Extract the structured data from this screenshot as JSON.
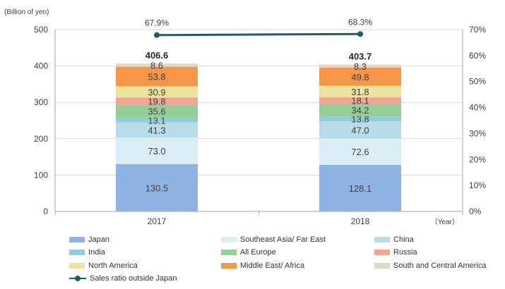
{
  "chart_data": {
    "type": "bar",
    "stacked": true,
    "categories": [
      "2017",
      "2018"
    ],
    "y_left_label": "(Billion of yen)",
    "x_unit_label": "（Year）",
    "ylim": [
      0,
      500
    ],
    "y_ticks": [
      "0",
      "100",
      "200",
      "300",
      "400",
      "500"
    ],
    "y2lim": [
      0,
      70
    ],
    "y2_ticks": [
      "0%",
      "10%",
      "20%",
      "30%",
      "40%",
      "50%",
      "60%",
      "70%"
    ],
    "series": [
      {
        "name": "Japan",
        "color": "#8eb4e3",
        "values": [
          130.5,
          128.1
        ],
        "labels": [
          "130.5",
          "128.1"
        ]
      },
      {
        "name": "Southeast Asia/ Far East",
        "color": "#dceef5",
        "values": [
          73.0,
          72.6
        ],
        "labels": [
          "73.0",
          "72.6"
        ]
      },
      {
        "name": "China",
        "color": "#b7dde8",
        "values": [
          41.3,
          47.0
        ],
        "labels": [
          "41.3",
          "47.0"
        ]
      },
      {
        "name": "India",
        "color": "#93cddd",
        "values": [
          13.1,
          13.8
        ],
        "labels": [
          "13.1",
          "13.8"
        ]
      },
      {
        "name": "All Europe",
        "color": "#92d098",
        "values": [
          35.6,
          34.2
        ],
        "labels": [
          "35.6",
          "34.2"
        ]
      },
      {
        "name": "Russia",
        "color": "#f2a595",
        "values": [
          19.8,
          18.1
        ],
        "labels": [
          "19.8",
          "18.1"
        ]
      },
      {
        "name": "North America",
        "color": "#ece39c",
        "values": [
          30.9,
          31.8
        ],
        "labels": [
          "30.9",
          "31.8"
        ]
      },
      {
        "name": "Middle East/ Africa",
        "color": "#f79646",
        "values": [
          53.8,
          49.8
        ],
        "labels": [
          "53.8",
          "49.8"
        ]
      },
      {
        "name": "South and Central America",
        "color": "#ddd9c4",
        "values": [
          8.6,
          8.3
        ],
        "labels": [
          "8.6",
          "8.3"
        ]
      }
    ],
    "totals": [
      "406.6",
      "403.7"
    ],
    "line_series": {
      "name": "Sales ratio outside Japan",
      "color": "#1f5d6e",
      "values": [
        67.9,
        68.3
      ],
      "labels": [
        "67.9%",
        "68.3%"
      ]
    }
  }
}
